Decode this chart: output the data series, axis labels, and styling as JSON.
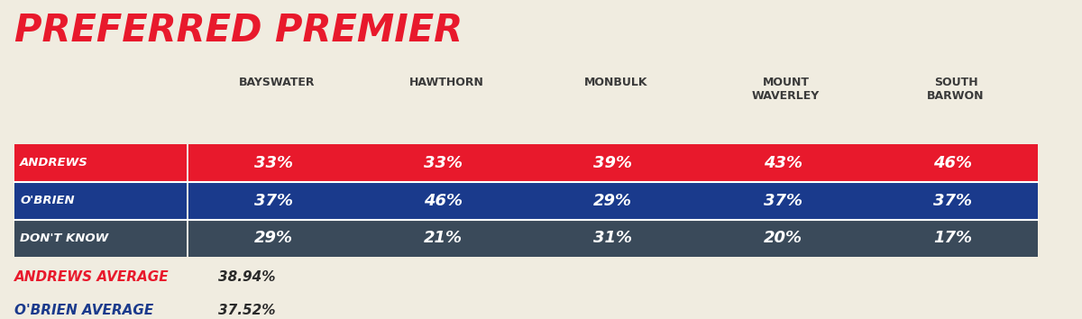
{
  "title": "PREFERRED PREMIER",
  "title_color": "#e8192c",
  "background_color": "#f0ece0",
  "columns": [
    "BAYSWATER",
    "HAWTHORN",
    "MONBULK",
    "MOUNT\nWAVERLEY",
    "SOUTH\nBARWON"
  ],
  "rows": [
    "ANDREWS",
    "O'BRIEN",
    "DON'T KNOW"
  ],
  "row_colors": [
    "#e8192c",
    "#1a3a8c",
    "#3a4a5a"
  ],
  "values": [
    [
      "33%",
      "33%",
      "39%",
      "43%",
      "46%"
    ],
    [
      "37%",
      "46%",
      "29%",
      "37%",
      "37%"
    ],
    [
      "29%",
      "21%",
      "31%",
      "20%",
      "17%"
    ]
  ],
  "cell_text_color": "#ffffff",
  "row_label_color": "#ffffff",
  "andrews_avg_label": "ANDREWS AVERAGE",
  "andrews_avg_value": "38.94%",
  "andrews_avg_color": "#e8192c",
  "obrien_avg_label": "O'BRIEN AVERAGE",
  "obrien_avg_value": "37.52%",
  "obrien_avg_color": "#1a3a8c",
  "avg_value_color": "#2a2a2a",
  "col_header_color": "#3a3a3a"
}
